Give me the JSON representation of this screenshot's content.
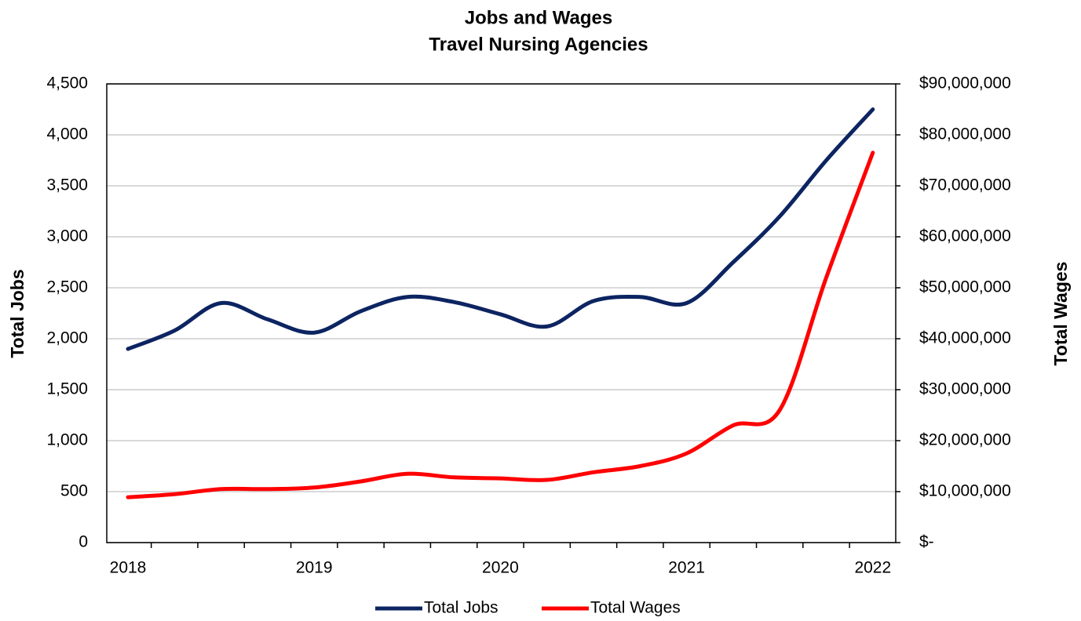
{
  "chart_data": {
    "type": "line",
    "title": "Jobs and Wages",
    "subtitle": "Travel Nursing Agencies",
    "y_label": "Total Jobs",
    "y2_label": "Total Wages",
    "categories": [
      "2018",
      null,
      null,
      null,
      "2019",
      null,
      null,
      null,
      "2020",
      null,
      null,
      null,
      "2021",
      null,
      null,
      null,
      "2022"
    ],
    "series": [
      {
        "name": "Total Jobs",
        "color": "#0c2461",
        "values": [
          1900,
          2080,
          2350,
          2190,
          2060,
          2270,
          2410,
          2360,
          2240,
          2120,
          2370,
          2410,
          2350,
          2750,
          3200,
          3750,
          4250
        ]
      },
      {
        "name": "Total Wages",
        "color": "#ff0000",
        "axis": "y2",
        "values": [
          8900000,
          9500000,
          10500000,
          10500000,
          10800000,
          12000000,
          13500000,
          12800000,
          12600000,
          12300000,
          13800000,
          15000000,
          17500000,
          23000000,
          26000000,
          52000000,
          76500000
        ]
      }
    ],
    "ylim": [
      0,
      4500
    ],
    "yticks": [
      0,
      {
        "value": 500,
        "label": "500"
      },
      {
        "value": 1000,
        "label": "1,000"
      },
      {
        "value": 1500,
        "label": "1,500"
      },
      {
        "value": 2000,
        "label": "2,000"
      },
      {
        "value": 2500,
        "label": "2,500"
      },
      {
        "value": 3000,
        "label": "3,000"
      },
      {
        "value": 3500,
        "label": "3,500"
      },
      {
        "value": 4000,
        "label": "4,000"
      },
      {
        "value": 4500,
        "label": "4,500"
      }
    ],
    "y2lim": [
      0,
      90000000
    ],
    "y2ticks": [
      {
        "value": 0,
        "label": "$-"
      },
      {
        "value": 10000000,
        "label": "$10,000,000"
      },
      {
        "value": 20000000,
        "label": "$20,000,000"
      },
      {
        "value": 30000000,
        "label": "$30,000,000"
      },
      {
        "value": 40000000,
        "label": "$40,000,000"
      },
      {
        "value": 50000000,
        "label": "$50,000,000"
      },
      {
        "value": 60000000,
        "label": "$60,000,000"
      },
      {
        "value": 70000000,
        "label": "$70,000,000"
      },
      {
        "value": 80000000,
        "label": "$80,000,000"
      },
      {
        "value": 90000000,
        "label": "$90,000,000"
      }
    ],
    "grid": true,
    "legend": "bottom"
  }
}
